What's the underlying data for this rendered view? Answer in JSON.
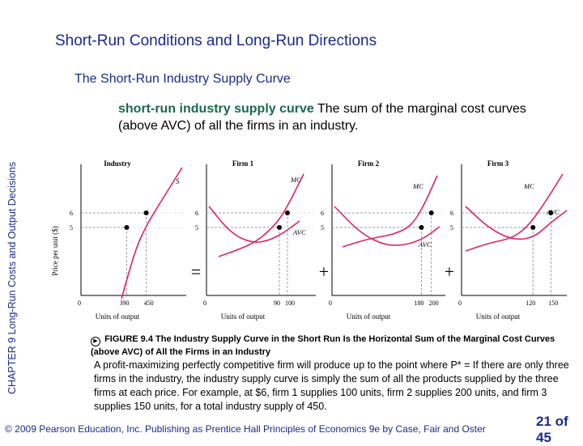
{
  "slide": {
    "title": "Short-Run Conditions and Long-Run Directions",
    "subtitle": "The Short-Run Industry Supply Curve",
    "definition_term": "short-run industry supply curve",
    "definition_text": "The sum of the marginal cost curves (above AVC) of all the firms in an industry.",
    "side_label": "CHAPTER 9 Long-Run Costs and Output Decisions",
    "caption_icon": "▶",
    "caption": "FIGURE 9.4 The Industry Supply Curve in the Short Run Is the Horizontal Sum of the Marginal Cost Curves (above AVC) of All the Firms in an Industry",
    "body": "A profit-maximizing perfectly competitive firm will produce up to the point where P* = If there are only three firms in the industry, the industry supply curve is simply the sum of all the products supplied by the three firms at each price. For example, at $6, firm 1 supplies 100 units, firm 2 supplies 200 units, and firm 3 supplies 150 units, for a total industry supply of 450.",
    "footer": "© 2009 Pearson Education, Inc. Publishing as Prentice Hall Principles of Economics 9e by Case, Fair and Oster",
    "page_number": "21 of 45"
  },
  "colors": {
    "title": "#1a2a8c",
    "term": "#1a6a4a",
    "curve": "#e0245e",
    "dashed": "#888888",
    "point": "#000000"
  },
  "chart_data": {
    "type": "line",
    "y_axis_label": "Price per unit ($)",
    "x_axis_label": "Units of output",
    "operators": [
      "=",
      "+",
      "+"
    ],
    "panels": [
      {
        "title": "Industry",
        "curves": [
          {
            "name": "S",
            "label": "S"
          }
        ],
        "y_ticks": [
          "6",
          "5"
        ],
        "x_ticks": [
          "390",
          "450"
        ],
        "origin_label": "0",
        "points": [
          {
            "x": 390,
            "y": 5
          },
          {
            "x": 450,
            "y": 6
          }
        ]
      },
      {
        "title": "Firm 1",
        "curves": [
          {
            "name": "MC",
            "label": "MC"
          },
          {
            "name": "AVC",
            "label": "AVC"
          }
        ],
        "y_ticks": [
          "6",
          "5"
        ],
        "x_ticks": [
          "90",
          "100"
        ],
        "origin_label": "0",
        "points": [
          {
            "x": 90,
            "y": 5
          },
          {
            "x": 100,
            "y": 6
          }
        ]
      },
      {
        "title": "Firm 2",
        "curves": [
          {
            "name": "MC",
            "label": "MC"
          },
          {
            "name": "AVC",
            "label": "AVC"
          }
        ],
        "y_ticks": [
          "6",
          "5"
        ],
        "x_ticks": [
          "180",
          "200"
        ],
        "origin_label": "0",
        "points": [
          {
            "x": 180,
            "y": 5
          },
          {
            "x": 200,
            "y": 6
          }
        ]
      },
      {
        "title": "Firm 3",
        "curves": [
          {
            "name": "MC",
            "label": "MC"
          },
          {
            "name": "AVC",
            "label": "AVC"
          }
        ],
        "y_ticks": [
          "6",
          "5"
        ],
        "x_ticks": [
          "120",
          "150"
        ],
        "origin_label": "0",
        "points": [
          {
            "x": 120,
            "y": 5
          },
          {
            "x": 150,
            "y": 6
          }
        ]
      }
    ]
  }
}
